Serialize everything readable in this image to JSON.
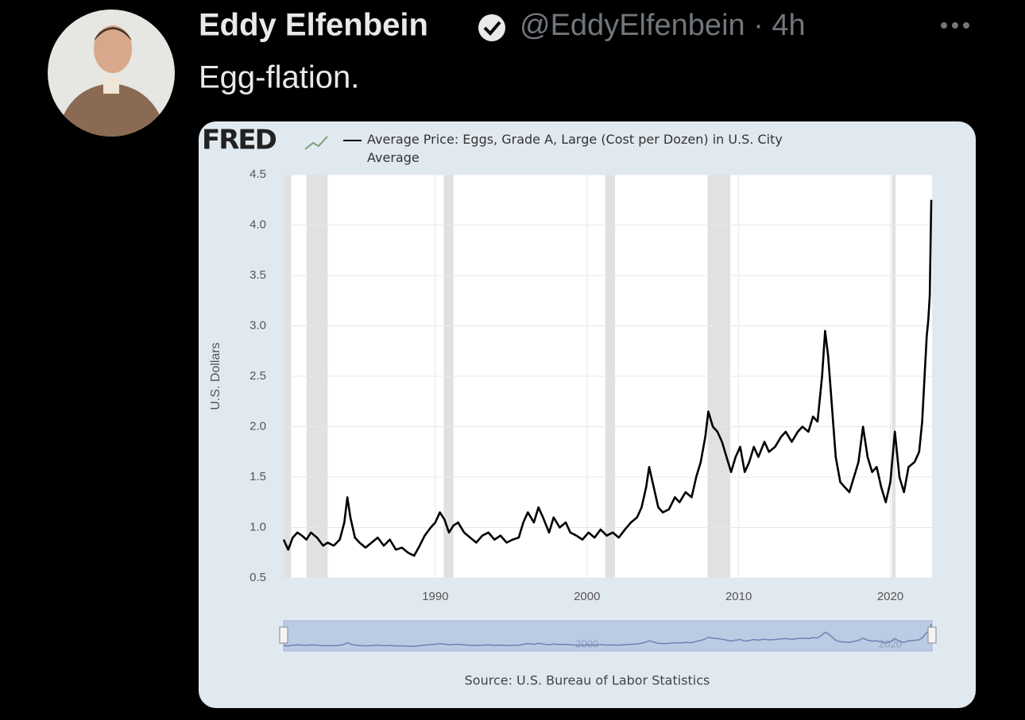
{
  "tweet": {
    "name": "Eddy Elfenbein",
    "meta": "@EddyElfenbein · 4h",
    "text": "Egg-flation."
  },
  "chart_data": {
    "type": "line",
    "logo": "FRED",
    "y_label": "U.S. Dollars",
    "source": "Source: U.S. Bureau of Labor Statistics",
    "xlim": [
      1980,
      2022.75
    ],
    "xticks": [
      1990,
      2000,
      2010,
      2020
    ],
    "ylim": [
      0.5,
      4.5
    ],
    "yticks": [
      {
        "value": 0.5,
        "label": "0.5"
      },
      {
        "value": 1,
        "label": "1.0"
      },
      {
        "value": 1.5,
        "label": "1.5"
      },
      {
        "value": 2,
        "label": "2.0"
      },
      {
        "value": 2.5,
        "label": "2.5"
      },
      {
        "value": 3,
        "label": "3.0"
      },
      {
        "value": 3.5,
        "label": "3.5"
      },
      {
        "value": 4,
        "label": "4.0"
      },
      {
        "value": 4.5,
        "label": "4.5"
      }
    ],
    "grid": true,
    "recessions": [
      [
        1980.0,
        1980.5
      ],
      [
        1981.5,
        1982.9
      ],
      [
        1990.55,
        1991.2
      ],
      [
        2001.2,
        2001.85
      ],
      [
        2007.95,
        2009.45
      ],
      [
        2020.1,
        2020.35
      ]
    ],
    "navigator_labels": [
      {
        "value": 2000,
        "label": "2000"
      },
      {
        "value": 2020,
        "label": "2020"
      }
    ],
    "x": [
      1980.0,
      1980.3,
      1980.6,
      1980.9,
      1981.2,
      1981.5,
      1981.8,
      1982.2,
      1982.6,
      1982.9,
      1983.3,
      1983.7,
      1984.0,
      1984.2,
      1984.4,
      1984.7,
      1985.0,
      1985.4,
      1985.8,
      1986.2,
      1986.6,
      1987.0,
      1987.4,
      1987.8,
      1988.2,
      1988.6,
      1988.9,
      1989.3,
      1989.7,
      1990.0,
      1990.3,
      1990.6,
      1990.9,
      1991.2,
      1991.5,
      1991.9,
      1992.3,
      1992.7,
      1993.1,
      1993.5,
      1993.9,
      1994.3,
      1994.7,
      1995.1,
      1995.5,
      1995.8,
      1996.1,
      1996.5,
      1996.8,
      1997.1,
      1997.5,
      1997.8,
      1998.2,
      1998.6,
      1998.9,
      1999.3,
      1999.7,
      2000.1,
      2000.5,
      2000.9,
      2001.3,
      2001.7,
      2002.1,
      2002.5,
      2002.9,
      2003.3,
      2003.6,
      2003.9,
      2004.1,
      2004.4,
      2004.7,
      2005.0,
      2005.4,
      2005.8,
      2006.1,
      2006.5,
      2006.9,
      2007.2,
      2007.5,
      2007.8,
      2008.0,
      2008.3,
      2008.6,
      2008.9,
      2009.2,
      2009.5,
      2009.8,
      2010.1,
      2010.4,
      2010.7,
      2011.0,
      2011.3,
      2011.7,
      2012.0,
      2012.4,
      2012.8,
      2013.1,
      2013.5,
      2013.9,
      2014.2,
      2014.6,
      2014.9,
      2015.2,
      2015.5,
      2015.7,
      2015.9,
      2016.1,
      2016.4,
      2016.7,
      2017.0,
      2017.3,
      2017.6,
      2017.9,
      2018.2,
      2018.5,
      2018.8,
      2019.1,
      2019.4,
      2019.7,
      2020.0,
      2020.3,
      2020.6,
      2020.9,
      2021.2,
      2021.6,
      2021.9,
      2022.1,
      2022.4,
      2022.5,
      2022.6,
      2022.7
    ],
    "series": [
      {
        "name": "Average Price: Eggs, Grade A, Large (Cost per Dozen) in U.S. City Average",
        "color": "#000000",
        "values": [
          0.88,
          0.78,
          0.9,
          0.95,
          0.92,
          0.88,
          0.95,
          0.9,
          0.82,
          0.85,
          0.82,
          0.88,
          1.05,
          1.3,
          1.1,
          0.9,
          0.85,
          0.8,
          0.85,
          0.9,
          0.82,
          0.88,
          0.78,
          0.8,
          0.75,
          0.72,
          0.8,
          0.92,
          1.0,
          1.05,
          1.15,
          1.08,
          0.95,
          1.02,
          1.05,
          0.95,
          0.9,
          0.85,
          0.92,
          0.95,
          0.88,
          0.92,
          0.85,
          0.88,
          0.9,
          1.05,
          1.15,
          1.05,
          1.2,
          1.1,
          0.95,
          1.1,
          1.0,
          1.05,
          0.95,
          0.92,
          0.88,
          0.95,
          0.9,
          0.98,
          0.92,
          0.95,
          0.9,
          0.98,
          1.05,
          1.1,
          1.2,
          1.4,
          1.6,
          1.4,
          1.2,
          1.15,
          1.18,
          1.3,
          1.25,
          1.35,
          1.3,
          1.5,
          1.65,
          1.9,
          2.15,
          2.0,
          1.95,
          1.85,
          1.7,
          1.55,
          1.7,
          1.8,
          1.55,
          1.65,
          1.8,
          1.7,
          1.85,
          1.75,
          1.8,
          1.9,
          1.95,
          1.85,
          1.95,
          2.0,
          1.95,
          2.1,
          2.05,
          2.5,
          2.95,
          2.7,
          2.3,
          1.7,
          1.45,
          1.4,
          1.35,
          1.5,
          1.65,
          2.0,
          1.7,
          1.55,
          1.6,
          1.4,
          1.25,
          1.45,
          1.95,
          1.5,
          1.35,
          1.6,
          1.65,
          1.75,
          2.05,
          2.9,
          3.05,
          3.3,
          4.25
        ]
      }
    ]
  }
}
